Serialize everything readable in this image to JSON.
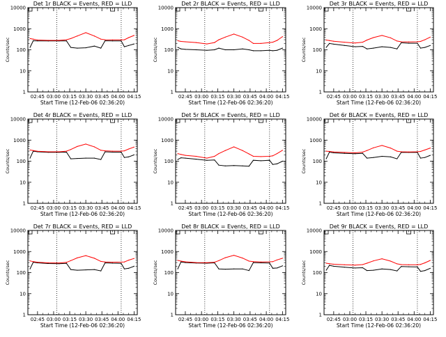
{
  "axes": {
    "ylabel": "Counts/sec",
    "xlabel": "Start Time (12-Feb-06 02:36:20)",
    "xticks": [
      "02:45",
      "03:00",
      "03:15",
      "03:30",
      "03:45",
      "04:00",
      "04:15"
    ],
    "yticks": [
      "1",
      "10",
      "100",
      "1000",
      "10000"
    ]
  },
  "colors": {
    "events": "#000000",
    "lld": "#ff0000"
  },
  "chart_data": [
    {
      "type": "line",
      "title": "Det 1r BLACK = Events, RED = LLD",
      "xlabel": "Start Time (12-Feb-06 02:36:20)",
      "ylabel": "Counts/sec",
      "x": [
        "02:38",
        "02:41",
        "02:45",
        "02:55",
        "03:05",
        "03:12",
        "03:16",
        "03:22",
        "03:30",
        "03:38",
        "03:44",
        "03:48",
        "03:55",
        "04:03",
        "04:06",
        "04:10",
        "04:15"
      ],
      "xlim": [
        "02:36",
        "04:18"
      ],
      "ylim": [
        1,
        10000
      ],
      "yscale": "log",
      "series": [
        {
          "name": "Events",
          "values": [
            130,
            270,
            265,
            262,
            262,
            265,
            130,
            120,
            125,
            150,
            120,
            270,
            265,
            262,
            140,
            160,
            190
          ]
        },
        {
          "name": "LLD",
          "values": [
            340,
            320,
            290,
            280,
            280,
            300,
            340,
            450,
            650,
            450,
            320,
            300,
            295,
            295,
            300,
            380,
            480
          ]
        }
      ]
    },
    {
      "type": "line",
      "title": "Det 2r BLACK = Events, RED = LLD",
      "xlabel": "Start Time (12-Feb-06 02:36:20)",
      "ylabel": "Counts/sec",
      "x": [
        "02:38",
        "02:41",
        "02:45",
        "02:55",
        "03:05",
        "03:12",
        "03:16",
        "03:22",
        "03:30",
        "03:38",
        "03:44",
        "03:48",
        "03:55",
        "04:03",
        "04:06",
        "04:10",
        "04:15"
      ],
      "xlim": [
        "02:36",
        "04:18"
      ],
      "ylim": [
        1,
        10000
      ],
      "yscale": "log",
      "series": [
        {
          "name": "Events",
          "values": [
            130,
            110,
            105,
            100,
            95,
            100,
            120,
            100,
            100,
            110,
            100,
            90,
            90,
            95,
            90,
            95,
            120
          ]
        },
        {
          "name": "LLD",
          "values": [
            270,
            250,
            240,
            220,
            190,
            220,
            300,
            400,
            560,
            400,
            280,
            200,
            200,
            220,
            230,
            280,
            420
          ]
        }
      ]
    },
    {
      "type": "line",
      "title": "Det 3r BLACK = Events, RED = LLD",
      "xlabel": "Start Time (12-Feb-06 02:36:20)",
      "ylabel": "Counts/sec",
      "x": [
        "02:38",
        "02:41",
        "02:45",
        "02:55",
        "03:05",
        "03:12",
        "03:16",
        "03:22",
        "03:30",
        "03:38",
        "03:44",
        "03:48",
        "03:55",
        "04:03",
        "04:06",
        "04:10",
        "04:15"
      ],
      "xlim": [
        "02:36",
        "04:18"
      ],
      "ylim": [
        1,
        10000
      ],
      "yscale": "log",
      "series": [
        {
          "name": "Events",
          "values": [
            130,
            200,
            185,
            160,
            140,
            145,
            110,
            120,
            140,
            130,
            110,
            215,
            205,
            205,
            120,
            130,
            160
          ]
        },
        {
          "name": "LLD",
          "values": [
            290,
            275,
            255,
            230,
            210,
            230,
            290,
            380,
            480,
            370,
            260,
            240,
            235,
            240,
            250,
            300,
            400
          ]
        }
      ]
    },
    {
      "type": "line",
      "title": "Det 4r BLACK = Events, RED = LLD",
      "xlabel": "Start Time (12-Feb-06 02:36:20)",
      "ylabel": "Counts/sec",
      "x": [
        "02:38",
        "02:41",
        "02:45",
        "02:55",
        "03:05",
        "03:12",
        "03:16",
        "03:22",
        "03:30",
        "03:38",
        "03:44",
        "03:48",
        "03:55",
        "04:03",
        "04:06",
        "04:10",
        "04:15"
      ],
      "xlim": [
        "02:36",
        "04:18"
      ],
      "ylim": [
        1,
        10000
      ],
      "yscale": "log",
      "series": [
        {
          "name": "Events",
          "values": [
            140,
            300,
            280,
            265,
            265,
            270,
            130,
            135,
            140,
            140,
            120,
            280,
            270,
            268,
            150,
            160,
            200
          ]
        },
        {
          "name": "LLD",
          "values": [
            340,
            320,
            295,
            280,
            280,
            300,
            360,
            500,
            650,
            480,
            330,
            310,
            300,
            300,
            310,
            380,
            470
          ]
        }
      ]
    },
    {
      "type": "line",
      "title": "Det 5r BLACK = Events, RED = LLD",
      "xlabel": "Start Time (12-Feb-06 02:36:20)",
      "ylabel": "Counts/sec",
      "x": [
        "02:38",
        "02:41",
        "02:45",
        "02:55",
        "03:05",
        "03:12",
        "03:16",
        "03:22",
        "03:30",
        "03:38",
        "03:44",
        "03:48",
        "03:55",
        "04:03",
        "04:06",
        "04:10",
        "04:15"
      ],
      "xlim": [
        "02:36",
        "04:18"
      ],
      "ylim": [
        1,
        10000
      ],
      "yscale": "log",
      "series": [
        {
          "name": "Events",
          "values": [
            120,
            145,
            140,
            125,
            110,
            115,
            65,
            60,
            62,
            60,
            58,
            110,
            105,
            110,
            70,
            75,
            100
          ]
        },
        {
          "name": "LLD",
          "values": [
            230,
            210,
            190,
            170,
            140,
            170,
            230,
            320,
            480,
            320,
            220,
            170,
            165,
            170,
            180,
            230,
            330
          ]
        }
      ]
    },
    {
      "type": "line",
      "title": "Det 6r BLACK = Events, RED = LLD",
      "xlabel": "Start Time (12-Feb-06 02:36:20)",
      "ylabel": "Counts/sec",
      "x": [
        "02:38",
        "02:41",
        "02:45",
        "02:55",
        "03:05",
        "03:12",
        "03:16",
        "03:22",
        "03:30",
        "03:38",
        "03:44",
        "03:48",
        "03:55",
        "04:03",
        "04:06",
        "04:10",
        "04:15"
      ],
      "xlim": [
        "02:36",
        "04:18"
      ],
      "ylim": [
        1,
        10000
      ],
      "yscale": "log",
      "series": [
        {
          "name": "Events",
          "values": [
            130,
            270,
            250,
            235,
            225,
            235,
            140,
            150,
            170,
            160,
            130,
            265,
            260,
            260,
            140,
            150,
            190
          ]
        },
        {
          "name": "LLD",
          "values": [
            300,
            290,
            275,
            260,
            250,
            270,
            320,
            430,
            560,
            420,
            300,
            280,
            275,
            280,
            290,
            340,
            420
          ]
        }
      ]
    },
    {
      "type": "line",
      "title": "Det 7r BLACK = Events, RED = LLD",
      "xlabel": "Start Time (12-Feb-06 02:36:20)",
      "ylabel": "Counts/sec",
      "x": [
        "02:38",
        "02:41",
        "02:45",
        "02:55",
        "03:05",
        "03:12",
        "03:16",
        "03:22",
        "03:30",
        "03:38",
        "03:44",
        "03:48",
        "03:55",
        "04:03",
        "04:06",
        "04:10",
        "04:15"
      ],
      "xlim": [
        "02:36",
        "04:18"
      ],
      "ylim": [
        1,
        10000
      ],
      "yscale": "log",
      "series": [
        {
          "name": "Events",
          "values": [
            150,
            310,
            290,
            270,
            265,
            275,
            140,
            130,
            135,
            140,
            120,
            290,
            280,
            275,
            150,
            160,
            200
          ]
        },
        {
          "name": "LLD",
          "values": [
            360,
            330,
            310,
            290,
            285,
            305,
            370,
            500,
            640,
            480,
            340,
            320,
            310,
            315,
            320,
            390,
            470
          ]
        }
      ]
    },
    {
      "type": "line",
      "title": "Det 8r BLACK = Events, RED = LLD",
      "xlabel": "Start Time (12-Feb-06 02:36:20)",
      "ylabel": "Counts/sec",
      "x": [
        "02:38",
        "02:41",
        "02:45",
        "02:55",
        "03:05",
        "03:12",
        "03:16",
        "03:22",
        "03:30",
        "03:38",
        "03:44",
        "03:48",
        "03:55",
        "04:03",
        "04:06",
        "04:10",
        "04:15"
      ],
      "xlim": [
        "02:36",
        "04:18"
      ],
      "ylim": [
        1,
        10000
      ],
      "yscale": "log",
      "series": [
        {
          "name": "Events",
          "values": [
            150,
            320,
            300,
            285,
            280,
            290,
            150,
            145,
            150,
            150,
            125,
            300,
            290,
            285,
            160,
            165,
            210
          ]
        },
        {
          "name": "LLD",
          "values": [
            380,
            350,
            325,
            300,
            295,
            310,
            370,
            510,
            660,
            490,
            350,
            330,
            320,
            325,
            330,
            400,
            480
          ]
        }
      ]
    },
    {
      "type": "line",
      "title": "Det 9r BLACK = Events, RED = LLD",
      "xlabel": "Start Time (12-Feb-06 02:36:20)",
      "ylabel": "Counts/sec",
      "x": [
        "02:38",
        "02:41",
        "02:45",
        "02:55",
        "03:05",
        "03:12",
        "03:16",
        "03:22",
        "03:30",
        "03:38",
        "03:44",
        "03:48",
        "03:55",
        "04:03",
        "04:06",
        "04:10",
        "04:15"
      ],
      "xlim": [
        "02:36",
        "04:18"
      ],
      "ylim": [
        1,
        10000
      ],
      "yscale": "log",
      "series": [
        {
          "name": "Events",
          "values": [
            130,
            220,
            200,
            180,
            165,
            170,
            125,
            130,
            150,
            140,
            120,
            195,
            190,
            185,
            115,
            125,
            160
          ]
        },
        {
          "name": "LLD",
          "values": [
            280,
            265,
            250,
            235,
            225,
            240,
            280,
            360,
            450,
            350,
            260,
            240,
            235,
            235,
            245,
            290,
            380
          ]
        }
      ]
    }
  ]
}
